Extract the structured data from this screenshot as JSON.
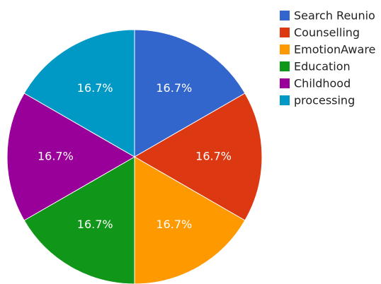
{
  "chart_data": {
    "type": "pie",
    "title": "",
    "legend_position": "right",
    "start_angle_deg": 0,
    "direction": "clockwise",
    "slices": [
      {
        "name": "Search Reunio",
        "value": 1,
        "label": "16.7%",
        "color": "#3366cc"
      },
      {
        "name": "Counselling",
        "value": 1,
        "label": "16.7%",
        "color": "#dc3912"
      },
      {
        "name": "EmotionAware",
        "value": 1,
        "label": "16.7%",
        "color": "#ff9900"
      },
      {
        "name": "Education",
        "value": 1,
        "label": "16.7%",
        "color": "#109618"
      },
      {
        "name": "Childhood",
        "value": 1,
        "label": "16.7%",
        "color": "#990099"
      },
      {
        "name": "processing",
        "value": 1,
        "label": "16.7%",
        "color": "#0099c6"
      }
    ]
  }
}
